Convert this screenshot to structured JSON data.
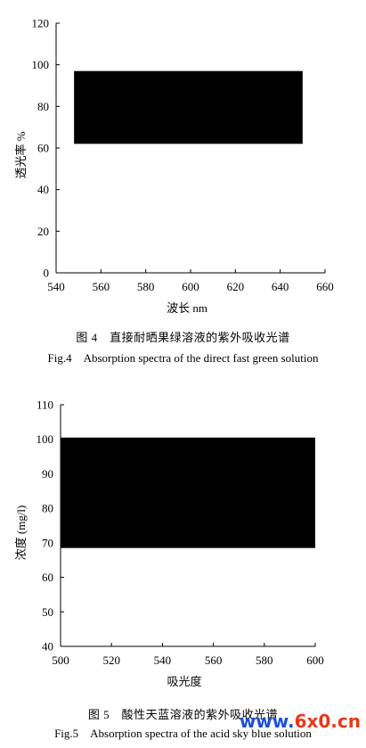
{
  "figures": [
    {
      "caption_cn": "图 4　直接耐晒果绿溶液的紫外吸收光谱",
      "caption_en": "Fig.4　Absorption spectra of the direct fast green solution"
    },
    {
      "caption_cn": "图 5　酸性天蓝溶液的紫外吸收光谱",
      "caption_en": "Fig.5　Absorption spectra of the acid sky blue solution"
    }
  ],
  "chart_data": [
    {
      "type": "area",
      "title": "",
      "xlabel": "波长 nm",
      "ylabel": "透光率 %",
      "xlim": [
        540,
        660
      ],
      "ylim": [
        0,
        120
      ],
      "xticks": [
        540,
        560,
        580,
        600,
        620,
        640,
        660
      ],
      "yticks": [
        0,
        20,
        40,
        60,
        80,
        100,
        120
      ],
      "grid": false,
      "legend": "none",
      "series_color": "#000000",
      "series": [
        {
          "x": [
            548,
            650
          ],
          "y_low": 62,
          "y_high": 97
        }
      ]
    },
    {
      "type": "area",
      "title": "",
      "xlabel": "吸光度",
      "ylabel": "浓度 (mg/l)",
      "xlim": [
        500,
        600
      ],
      "ylim": [
        40,
        110
      ],
      "xticks": [
        500,
        520,
        540,
        560,
        580,
        600
      ],
      "yticks": [
        40,
        50,
        60,
        70,
        80,
        90,
        100,
        110
      ],
      "grid": false,
      "legend": "none",
      "series_color": "#000000",
      "series": [
        {
          "x": [
            500,
            600
          ],
          "y_low": 68.5,
          "y_high": 100.5
        }
      ]
    }
  ],
  "watermark": {
    "part1": "www.",
    "part2": "6x0.cn"
  }
}
